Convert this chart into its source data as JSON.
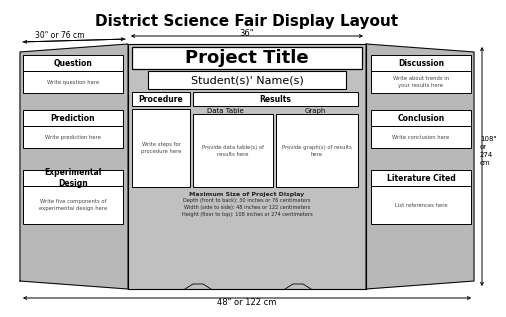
{
  "title": "District Science Fair Display Layout",
  "title_fontsize": 11,
  "top_label": "36\"",
  "bottom_label": "48\" or 122 cm",
  "left_label": "30\" or 76 cm",
  "right_labels": [
    "108\"",
    "or",
    "274",
    "cm"
  ],
  "left_sections": [
    {
      "header": "Question",
      "body": "Write question here"
    },
    {
      "header": "Prediction",
      "body": "Write prediction here"
    },
    {
      "header": "Experimental\nDesign",
      "body": "Write five components of\nexperimental design here"
    }
  ],
  "right_sections": [
    {
      "header": "Discussion",
      "body": "Write about trends in\nyour results here"
    },
    {
      "header": "Conclusion",
      "body": "Write conclusion here"
    },
    {
      "header": "Literature Cited",
      "body": "List references here"
    }
  ],
  "center_title": "Project Title",
  "center_names": "Student(s)' Name(s)",
  "procedure_header": "Procedure",
  "procedure_body": "Write steps for\nprocedure here",
  "results_header": "Results",
  "data_table_header": "Data Table",
  "data_table_body": "Provide data table(s) of\nresults here",
  "graph_header": "Graph",
  "graph_body": "Provide graph(s) of results\nhere",
  "max_size_title": "Maximum Size of Project Display",
  "max_size_lines": [
    "Depth (front to back): 30 inches or 76 centimeters",
    "Width (side to side): 48 inches or 122 centimeters",
    "Height (floor to top): 108 inches or 274 centimeters"
  ],
  "gray_wing": "#b8b8b8",
  "gray_center": "#c0c0c0",
  "gray_light": "#d8d8d8",
  "white": "#ffffff",
  "black": "#000000",
  "dark_text": "#222222",
  "small_text": "#444444"
}
